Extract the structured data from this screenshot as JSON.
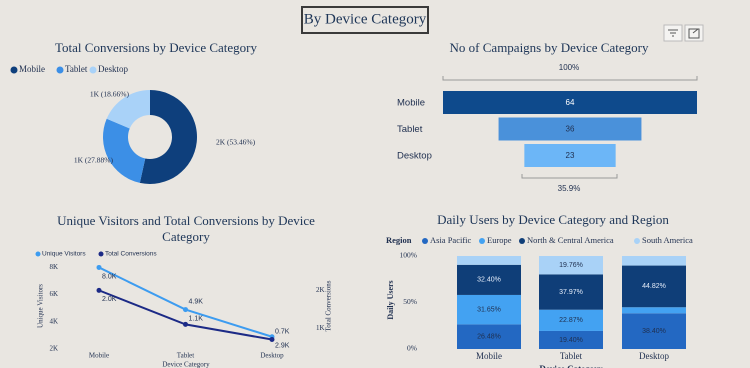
{
  "header": {
    "title": "By Device Category"
  },
  "chart_data": [
    {
      "type": "donut",
      "title": "Total Conversions by Device Category",
      "categories": [
        "Mobile",
        "Tablet",
        "Desktop"
      ],
      "values": [
        53.46,
        27.88,
        18.66
      ],
      "value_labels": [
        "2K (53.46%)",
        "1K (27.88%)",
        "1K (18.66%)"
      ],
      "colors": [
        "#0e3f7c",
        "#3c8fe6",
        "#a9d2f8"
      ]
    },
    {
      "type": "funnel",
      "title": "No of Campaigns by Device Category",
      "categories": [
        "Mobile",
        "Tablet",
        "Desktop"
      ],
      "values": [
        64,
        36,
        23
      ],
      "colors": [
        "#0e4a8c",
        "#4a91da",
        "#6cb6f7"
      ],
      "top_label": "100%",
      "bottom_label": "35.9%"
    },
    {
      "type": "line",
      "title": "Unique Visitors and Total Conversions by Device Category",
      "x_label": "Device Category",
      "y_label": "Unique Visitors",
      "y2_label": "Total Conversions",
      "categories": [
        "Mobile",
        "Tablet",
        "Desktop"
      ],
      "series": [
        {
          "name": "Unique Visitors",
          "color": "#3d9cf0",
          "values": [
            8000,
            4900,
            2900
          ],
          "value_labels": [
            "8.0K",
            "4.9K",
            "2.9K"
          ]
        },
        {
          "name": "Total Conversions",
          "color": "#1c2a86",
          "axis": "y2",
          "values": [
            2000,
            1100,
            700
          ],
          "value_labels": [
            "2.0K",
            "1.1K",
            "0.7K"
          ]
        }
      ],
      "ylim": [
        2000,
        8400
      ],
      "yticks": [
        {
          "value": 2000,
          "label": "2K"
        },
        {
          "value": 4000,
          "label": "4K"
        },
        {
          "value": 6000,
          "label": "6K"
        },
        {
          "value": 8000,
          "label": "8K"
        }
      ],
      "y2lim": [
        450,
        2750
      ],
      "y2ticks": [
        {
          "value": 1000,
          "label": "1K"
        },
        {
          "value": 2000,
          "label": "2K"
        }
      ]
    },
    {
      "type": "stacked_bar_100",
      "title": "Daily Users by Device Category and Region",
      "legend_title": "Region",
      "x_label": "Device Category",
      "y_label": "Daily Users",
      "categories": [
        "Mobile",
        "Tablet",
        "Desktop"
      ],
      "series": [
        {
          "name": "Asia Pacific",
          "color": "#2368c2",
          "values": [
            26.48,
            19.4,
            38.4
          ],
          "value_labels": [
            "26.48%",
            "19.40%",
            "38.40%"
          ]
        },
        {
          "name": "Europe",
          "color": "#43a2f2",
          "values": [
            31.65,
            22.87,
            6.5
          ],
          "value_labels": [
            "31.65%",
            "22.87%",
            null
          ]
        },
        {
          "name": "North & Central America",
          "color": "#0f3e78",
          "values": [
            32.4,
            37.97,
            44.82
          ],
          "value_labels": [
            "32.40%",
            "37.97%",
            "44.82%"
          ]
        },
        {
          "name": "South America",
          "color": "#a9d2f7",
          "values": [
            9.47,
            19.76,
            10.28
          ],
          "value_labels": [
            null,
            "19.76%",
            null
          ]
        }
      ],
      "ylim": [
        0,
        100
      ],
      "yticks": [
        {
          "value": 0,
          "label": "0%"
        },
        {
          "value": 50,
          "label": "50%"
        },
        {
          "value": 100,
          "label": "100%"
        }
      ]
    }
  ]
}
